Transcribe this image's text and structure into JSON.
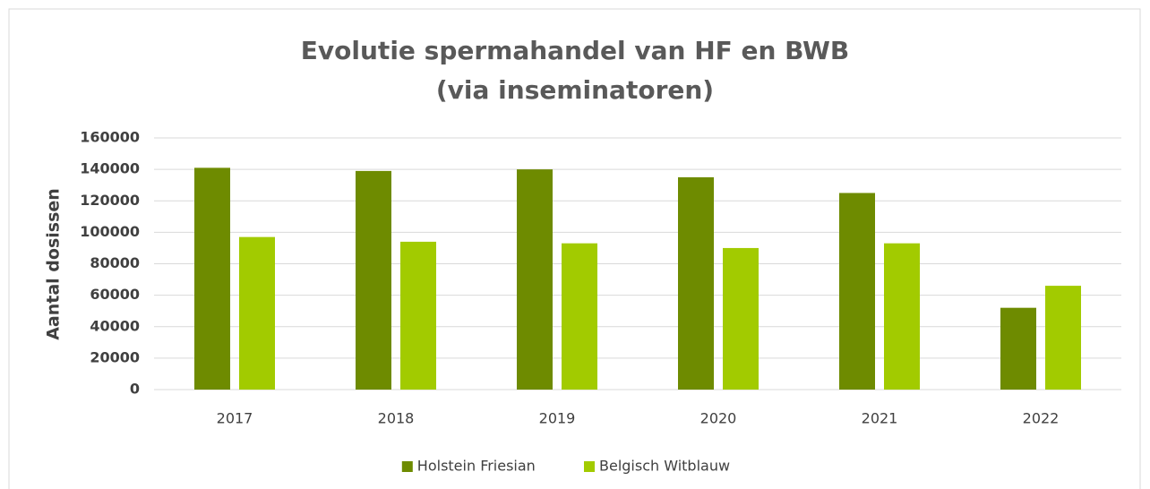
{
  "chart_data": {
    "type": "bar",
    "title": [
      "Evolutie spermahandel van HF en BWB",
      "(via inseminatoren)"
    ],
    "ylabel": "Aantal dosissen",
    "categories": [
      "2017",
      "2018",
      "2019",
      "2020",
      "2021",
      "2022"
    ],
    "series": [
      {
        "name": "Holstein Friesian",
        "color": "#6e8b00",
        "values": [
          141000,
          139000,
          140000,
          135000,
          125000,
          52000
        ]
      },
      {
        "name": "Belgisch Witblauw",
        "color": "#a2cb00",
        "values": [
          97000,
          94000,
          93000,
          90000,
          93000,
          66000
        ]
      }
    ],
    "ylim": [
      0,
      160000
    ],
    "yticks": [
      0,
      20000,
      40000,
      60000,
      80000,
      100000,
      120000,
      140000,
      160000
    ],
    "grid": true,
    "legend": "bottom"
  }
}
